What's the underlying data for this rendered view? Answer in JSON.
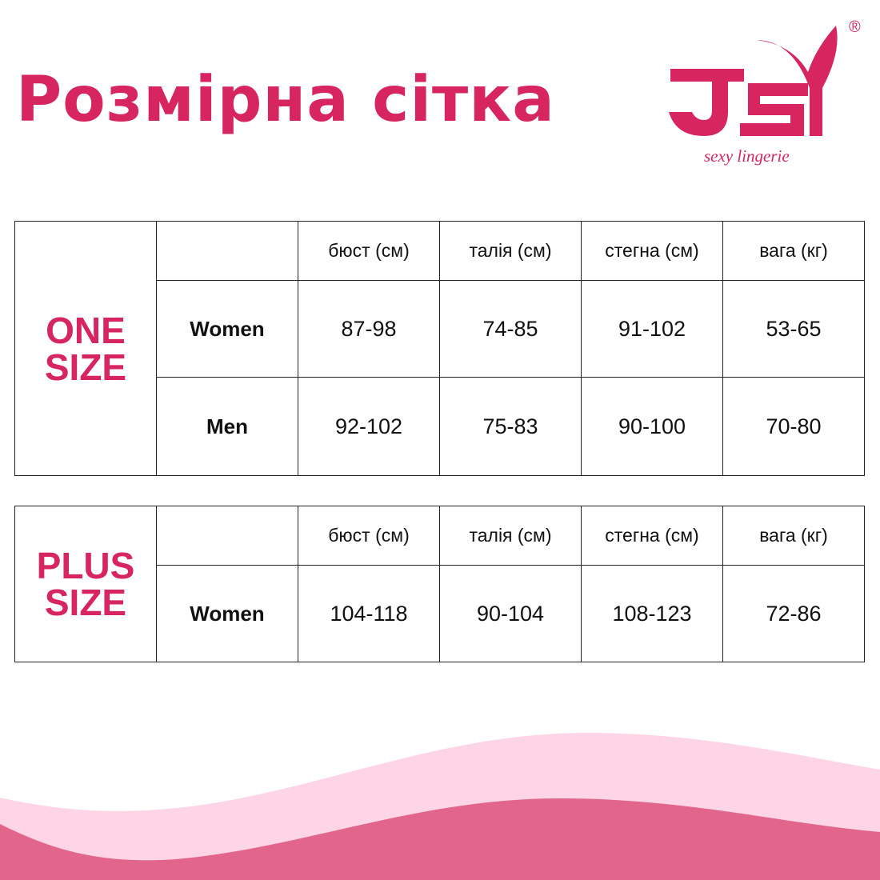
{
  "title": "Розмірна сітка",
  "logo": {
    "text": "JSY",
    "tagline": "sexy lingerie",
    "mark": "®"
  },
  "colors": {
    "accent": "#d6255f",
    "wave_light": "#fdd5e6",
    "wave_dark": "#e2658c"
  },
  "headers": [
    "бюст (см)",
    "талія (см)",
    "стегна (см)",
    "вага (кг)"
  ],
  "one_size": {
    "label_line1": "ONE",
    "label_line2": "SIZE",
    "rows": [
      {
        "label": "Women",
        "values": [
          "87-98",
          "74-85",
          "91-102",
          "53-65"
        ]
      },
      {
        "label": "Men",
        "values": [
          "92-102",
          "75-83",
          "90-100",
          "70-80"
        ]
      }
    ]
  },
  "plus_size": {
    "label_line1": "PLUS",
    "label_line2": "SIZE",
    "rows": [
      {
        "label": "Women",
        "values": [
          "104-118",
          "90-104",
          "108-123",
          "72-86"
        ]
      }
    ]
  }
}
